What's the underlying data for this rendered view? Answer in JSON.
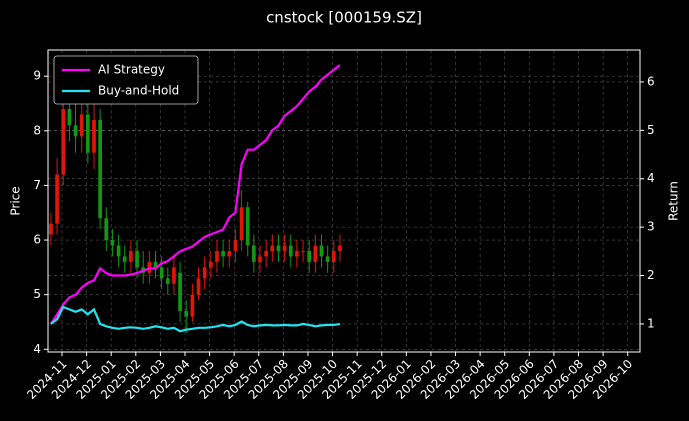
{
  "chart_data": {
    "type": "candlestick",
    "title": "cnstock [000159.SZ]",
    "ylabel": "Price",
    "y2label": "Return",
    "up_color": "#e0160b",
    "down_color": "#119911",
    "grid": true,
    "legend": "upper left",
    "xlim": [
      -0.57,
      23.5
    ],
    "xticks": [
      {
        "value": 0,
        "label": "2024-11"
      },
      {
        "value": 1,
        "label": "2024-12"
      },
      {
        "value": 2,
        "label": "2025-01"
      },
      {
        "value": 3,
        "label": "2025-02"
      },
      {
        "value": 4,
        "label": "2025-03"
      },
      {
        "value": 5,
        "label": "2025-04"
      },
      {
        "value": 6,
        "label": "2025-05"
      },
      {
        "value": 7,
        "label": "2025-06"
      },
      {
        "value": 8,
        "label": "2025-07"
      },
      {
        "value": 9,
        "label": "2025-08"
      },
      {
        "value": 10,
        "label": "2025-09"
      },
      {
        "value": 11,
        "label": "2025-10"
      },
      {
        "value": 12,
        "label": "2025-11"
      },
      {
        "value": 13,
        "label": "2025-12"
      },
      {
        "value": 14,
        "label": "2026-01"
      },
      {
        "value": 15,
        "label": "2026-02"
      },
      {
        "value": 16,
        "label": "2026-03"
      },
      {
        "value": 17,
        "label": "2026-04"
      },
      {
        "value": 18,
        "label": "2026-05"
      },
      {
        "value": 19,
        "label": "2026-06"
      },
      {
        "value": 20,
        "label": "2026-07"
      },
      {
        "value": 21,
        "label": "2026-08"
      },
      {
        "value": 22,
        "label": "2026-09"
      },
      {
        "value": 23,
        "label": "2026-10"
      }
    ],
    "ylim": [
      3.95,
      9.48
    ],
    "yticks": [
      4,
      5,
      6,
      7,
      8,
      9
    ],
    "y2lim": [
      0.42,
      6.66
    ],
    "y2ticks": [
      1,
      2,
      3,
      4,
      5,
      6
    ],
    "x": [
      -0.45,
      -0.2,
      0.05,
      0.3,
      0.55,
      0.8,
      1.05,
      1.3,
      1.55,
      1.8,
      2.05,
      2.3,
      2.55,
      2.8,
      3.05,
      3.3,
      3.55,
      3.8,
      4.05,
      4.3,
      4.55,
      4.8,
      5.05,
      5.3,
      5.55,
      5.8,
      6.05,
      6.3,
      6.55,
      6.8,
      7.05,
      7.3,
      7.55,
      7.8,
      8.05,
      8.3,
      8.55,
      8.8,
      9.05,
      9.3,
      9.55,
      9.8,
      10.05,
      10.3,
      10.55,
      10.8,
      11.05,
      11.3
    ],
    "open": [
      6.1,
      6.3,
      7.2,
      8.4,
      8.1,
      7.9,
      8.3,
      7.6,
      8.2,
      6.4,
      6.0,
      5.9,
      5.7,
      5.6,
      5.8,
      5.5,
      5.4,
      5.6,
      5.5,
      5.3,
      5.2,
      5.4,
      4.7,
      4.6,
      5.0,
      5.3,
      5.5,
      5.6,
      5.8,
      5.7,
      5.8,
      6.0,
      6.6,
      5.9,
      5.6,
      5.7,
      5.8,
      5.9,
      5.8,
      5.9,
      5.7,
      5.8,
      5.8,
      5.6,
      5.9,
      5.7,
      5.6,
      5.8
    ],
    "high": [
      6.5,
      7.5,
      8.7,
      8.9,
      8.5,
      8.7,
      8.5,
      8.5,
      8.4,
      6.6,
      6.2,
      6.1,
      5.9,
      6.0,
      6.0,
      5.8,
      5.8,
      5.8,
      5.7,
      5.5,
      5.7,
      5.6,
      4.9,
      5.2,
      5.5,
      5.7,
      5.8,
      6.0,
      6.0,
      6.0,
      6.2,
      6.9,
      6.7,
      6.1,
      5.9,
      6.0,
      6.1,
      6.1,
      6.1,
      6.1,
      6.0,
      6.0,
      6.0,
      6.1,
      6.1,
      5.9,
      6.0,
      6.1
    ],
    "low": [
      5.9,
      6.1,
      7.0,
      7.8,
      7.6,
      7.6,
      7.4,
      7.3,
      6.2,
      5.8,
      5.7,
      5.5,
      5.4,
      5.4,
      5.3,
      5.2,
      5.2,
      5.3,
      5.1,
      5.0,
      5.0,
      4.5,
      4.3,
      4.5,
      4.9,
      5.1,
      5.3,
      5.4,
      5.5,
      5.5,
      5.6,
      5.8,
      5.7,
      5.4,
      5.4,
      5.5,
      5.6,
      5.6,
      5.6,
      5.5,
      5.5,
      5.6,
      5.4,
      5.4,
      5.5,
      5.4,
      5.4,
      5.6
    ],
    "close": [
      6.3,
      7.2,
      8.4,
      8.1,
      7.9,
      8.3,
      7.6,
      8.2,
      6.4,
      6.0,
      5.9,
      5.7,
      5.6,
      5.8,
      5.5,
      5.4,
      5.6,
      5.5,
      5.3,
      5.2,
      5.5,
      4.7,
      4.6,
      5.0,
      5.3,
      5.5,
      5.6,
      5.8,
      5.7,
      5.8,
      6.0,
      6.6,
      5.9,
      5.6,
      5.7,
      5.8,
      5.9,
      5.8,
      5.9,
      5.7,
      5.8,
      5.8,
      5.6,
      5.9,
      5.7,
      5.6,
      5.8,
      5.9
    ],
    "series": [
      {
        "name": "AI Strategy",
        "color": "#ff00ff",
        "axis": "y2",
        "values": [
          1.0,
          1.2,
          1.4,
          1.55,
          1.6,
          1.75,
          1.85,
          1.9,
          2.15,
          2.05,
          2.0,
          2.0,
          2.0,
          2.02,
          2.05,
          2.1,
          2.15,
          2.15,
          2.25,
          2.3,
          2.4,
          2.5,
          2.55,
          2.6,
          2.7,
          2.8,
          2.85,
          2.9,
          2.95,
          3.2,
          3.3,
          4.3,
          4.6,
          4.6,
          4.7,
          4.8,
          5.0,
          5.1,
          5.3,
          5.4,
          5.5,
          5.65,
          5.8,
          5.9,
          6.05,
          6.15,
          6.25,
          6.35
        ]
      },
      {
        "name": "Buy-and-Hold",
        "color": "#22e5f0",
        "axis": "y2",
        "values": [
          1.0,
          1.1,
          1.35,
          1.3,
          1.25,
          1.3,
          1.2,
          1.3,
          1.0,
          0.95,
          0.92,
          0.9,
          0.92,
          0.93,
          0.92,
          0.9,
          0.92,
          0.95,
          0.93,
          0.9,
          0.92,
          0.85,
          0.88,
          0.9,
          0.92,
          0.92,
          0.93,
          0.95,
          0.98,
          0.95,
          0.98,
          1.05,
          0.98,
          0.95,
          0.97,
          0.98,
          0.97,
          0.97,
          0.98,
          0.97,
          0.97,
          1.0,
          0.98,
          0.95,
          0.97,
          0.98,
          0.98,
          1.0
        ]
      }
    ]
  }
}
